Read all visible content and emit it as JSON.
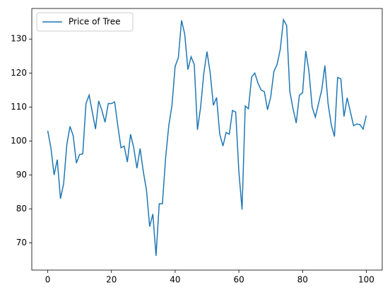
{
  "chart_data": {
    "type": "line",
    "x": [
      0,
      1,
      2,
      3,
      4,
      5,
      6,
      7,
      8,
      9,
      10,
      11,
      12,
      13,
      14,
      15,
      16,
      17,
      18,
      19,
      20,
      21,
      22,
      23,
      24,
      25,
      26,
      27,
      28,
      29,
      30,
      31,
      32,
      33,
      34,
      35,
      36,
      37,
      38,
      39,
      40,
      41,
      42,
      43,
      44,
      45,
      46,
      47,
      48,
      49,
      50,
      51,
      52,
      53,
      54,
      55,
      56,
      57,
      58,
      59,
      60,
      61,
      62,
      63,
      64,
      65,
      66,
      67,
      68,
      69,
      70,
      71,
      72,
      73,
      74,
      75,
      76,
      77,
      78,
      79,
      80,
      81,
      82,
      83,
      84,
      85,
      86,
      87,
      88,
      89,
      90,
      91,
      92,
      93,
      94,
      95,
      96,
      97,
      98,
      99,
      100
    ],
    "series": [
      {
        "name": "Price of Tree",
        "color": "#1f77b4",
        "values": [
          103,
          98,
          90,
          94.5,
          83,
          87.5,
          99,
          104.3,
          101.5,
          93.5,
          96,
          96.2,
          111,
          113.5,
          108.5,
          103.5,
          111.8,
          109,
          105.5,
          111,
          111,
          111.5,
          104.5,
          98,
          98.5,
          93.8,
          102,
          98,
          92,
          97.8,
          91,
          85.5,
          74.8,
          78.5,
          66.2,
          81.5,
          81.5,
          95,
          104.5,
          110.5,
          122,
          124.5,
          135.5,
          131.5,
          121,
          124.8,
          122.5,
          103.3,
          110,
          120,
          126.3,
          120,
          110.5,
          112.8,
          102,
          98.5,
          102.5,
          102,
          109,
          108.5,
          91,
          79.8,
          110.3,
          109.5,
          118.8,
          120,
          117,
          115,
          114.5,
          109.2,
          113,
          120.5,
          122.5,
          127,
          135.7,
          134,
          114.5,
          109.5,
          105.3,
          113.5,
          114.2,
          126.5,
          120.5,
          110,
          107,
          111,
          115,
          122.2,
          111,
          104.8,
          101.3,
          118.7,
          118.3,
          107.2,
          112.7,
          108.6,
          104.5,
          105,
          104.8,
          103.5,
          107.5
        ]
      }
    ],
    "xlim": [
      -5,
      105
    ],
    "ylim": [
      62,
      139
    ],
    "xticks": [
      0,
      20,
      40,
      60,
      80,
      100
    ],
    "yticks": [
      70,
      80,
      90,
      100,
      110,
      120,
      130
    ],
    "legend": "upper left"
  }
}
